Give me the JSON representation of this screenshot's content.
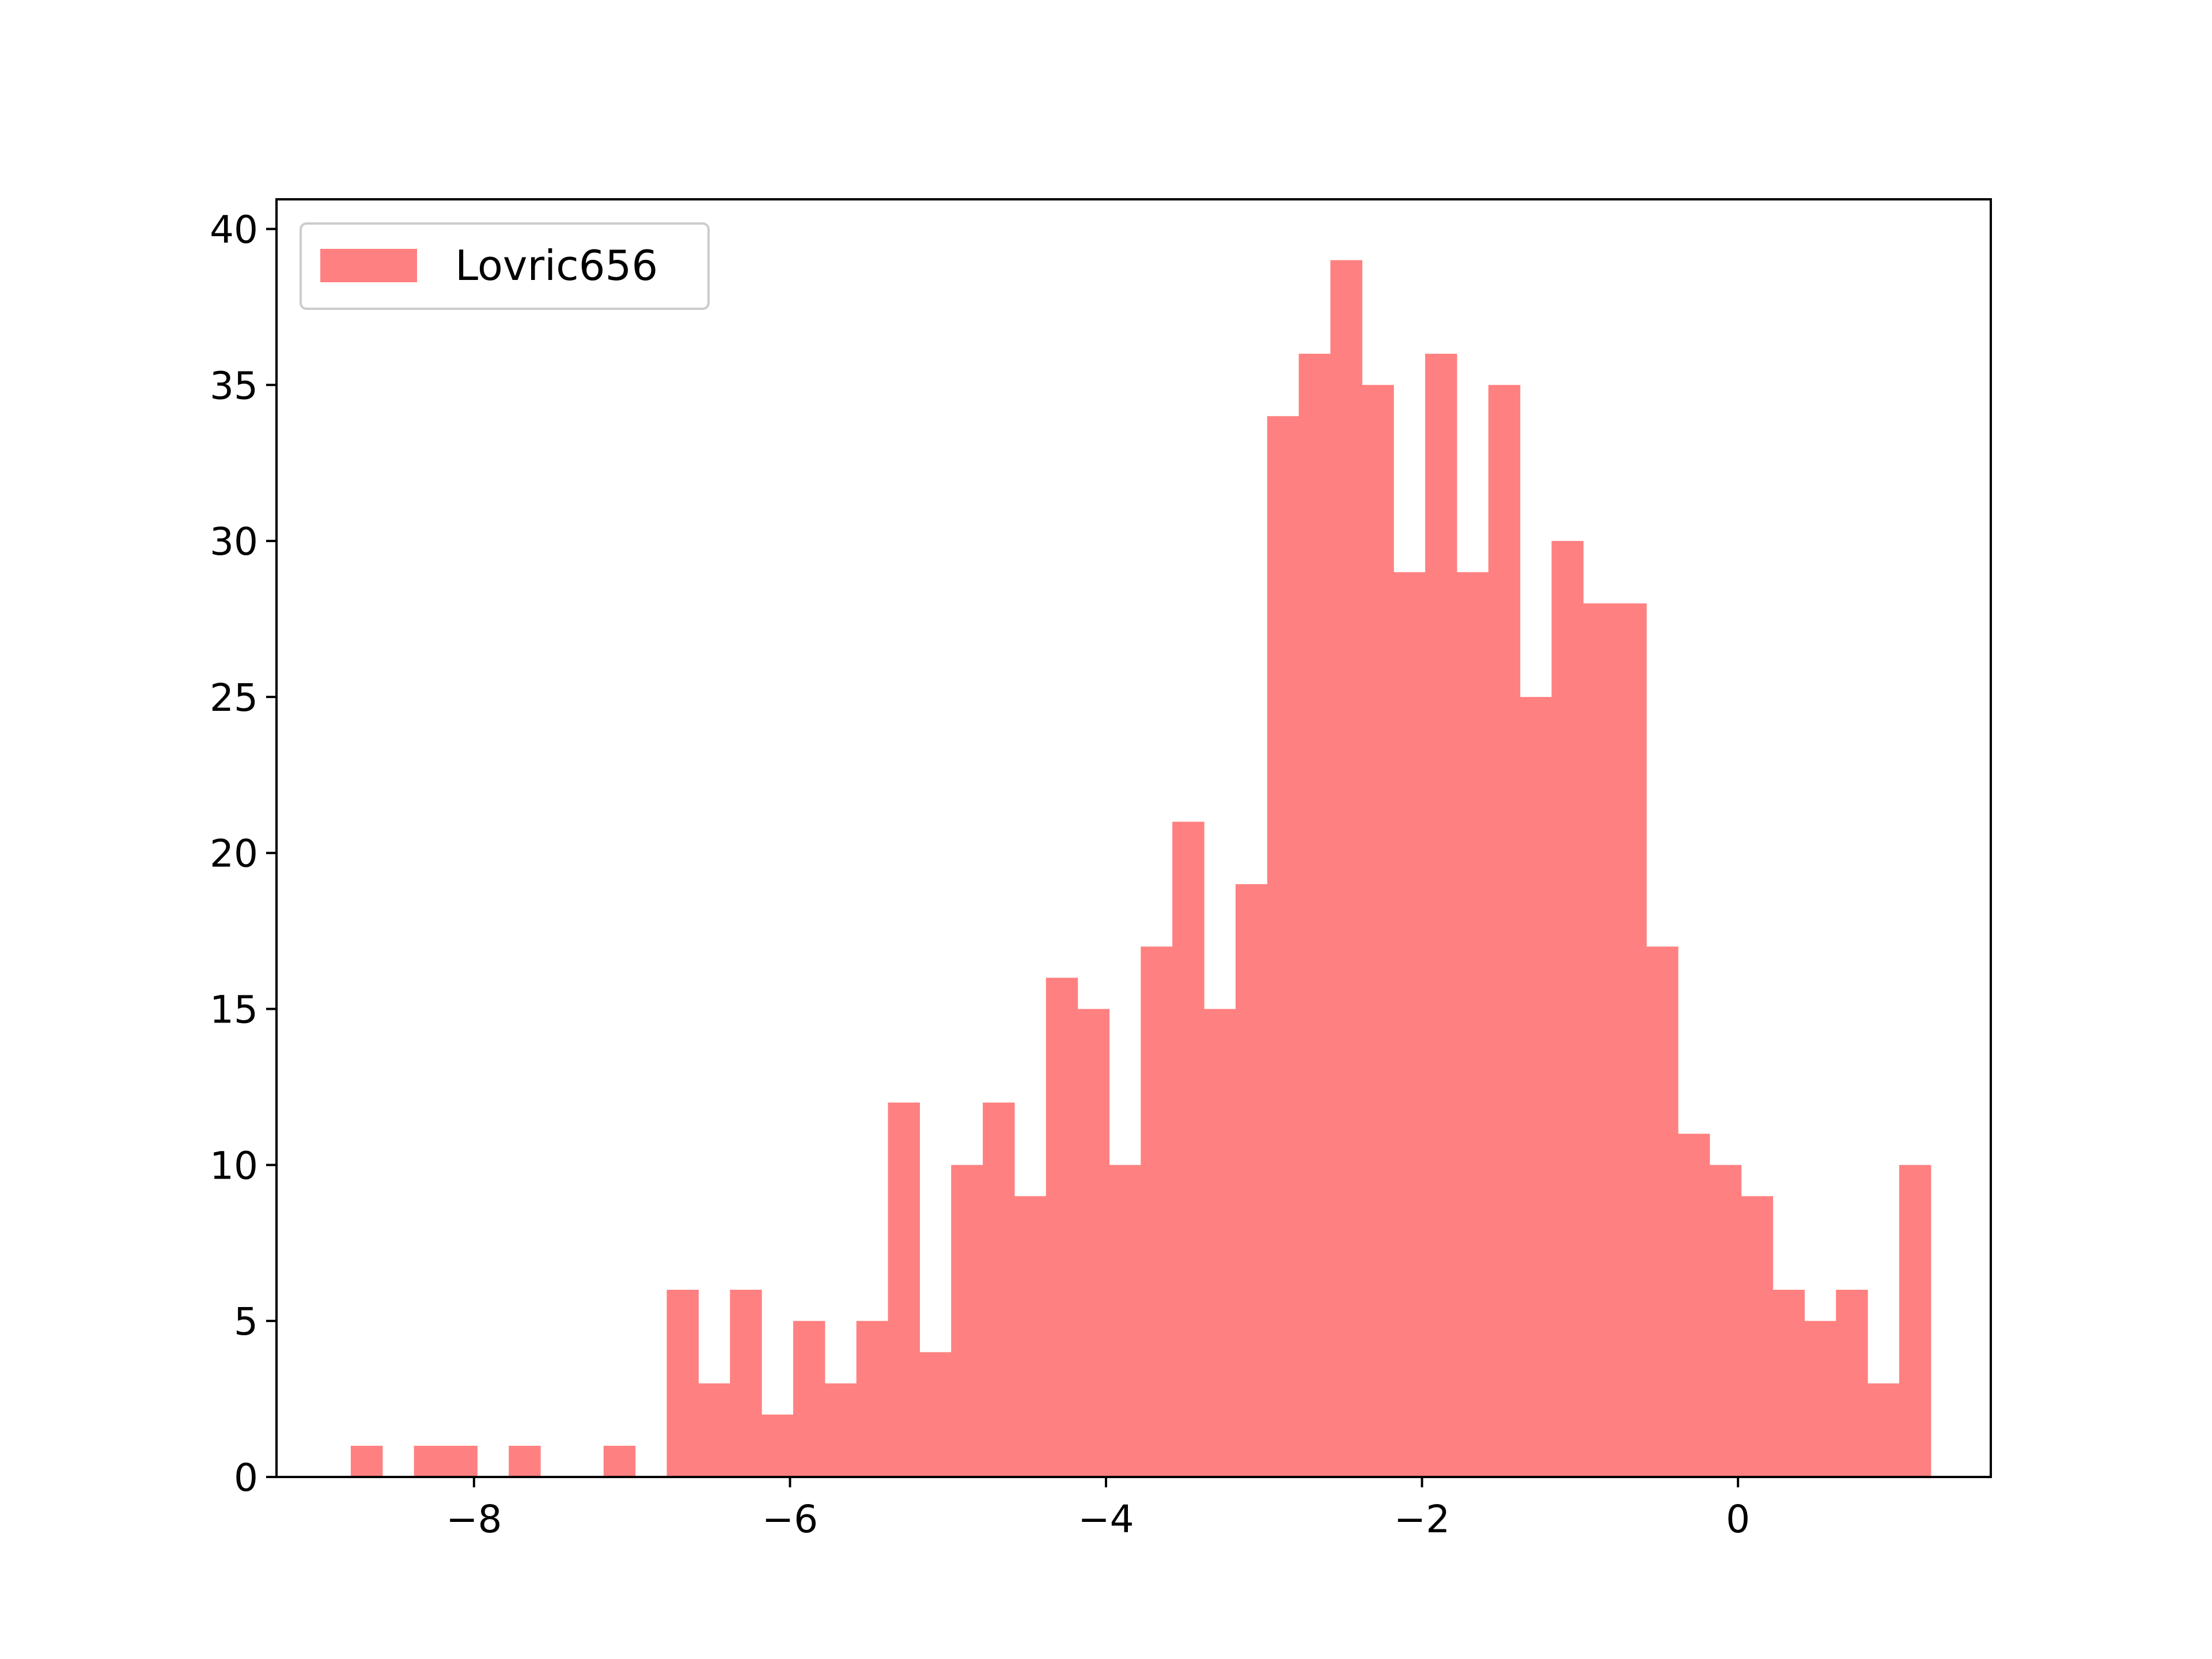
{
  "chart_data": {
    "type": "bar",
    "title": "",
    "xlabel": "",
    "ylabel": "",
    "xlim": [
      -9.25,
      1.6
    ],
    "ylim": [
      0,
      40.95
    ],
    "grid": false,
    "legend": {
      "placement": "top-left",
      "entries": [
        "Lovric656"
      ]
    },
    "series": [
      {
        "name": "Lovric656",
        "color": "#ff8080",
        "bin_edges": [
          -8.78,
          -8.58,
          -8.38,
          -8.18,
          -7.98,
          -7.78,
          -7.58,
          -7.38,
          -7.18,
          -6.98,
          -6.78,
          -6.58,
          -6.38,
          -6.18,
          -5.98,
          -5.78,
          -5.58,
          -5.38,
          -5.18,
          -4.98,
          -4.78,
          -4.58,
          -4.38,
          -4.18,
          -3.98,
          -3.78,
          -3.58,
          -3.38,
          -3.18,
          -2.98,
          -2.78,
          -2.58,
          -2.38,
          -2.18,
          -1.98,
          -1.78,
          -1.58,
          -1.38,
          -1.18,
          -0.98,
          -0.78,
          -0.58,
          -0.38,
          -0.18,
          0.02,
          0.22,
          0.42,
          0.62,
          0.82,
          1.02,
          1.22
        ],
        "counts": [
          1,
          0,
          1,
          1,
          0,
          1,
          0,
          0,
          1,
          0,
          6,
          3,
          6,
          2,
          5,
          3,
          5,
          12,
          4,
          10,
          12,
          9,
          16,
          15,
          10,
          17,
          21,
          15,
          19,
          34,
          36,
          39,
          35,
          29,
          36,
          29,
          35,
          25,
          30,
          28,
          28,
          17,
          11,
          10,
          9,
          6,
          5,
          6,
          3,
          10
        ]
      }
    ],
    "x_ticks": [
      -8,
      -6,
      -4,
      -2,
      0
    ],
    "x_tick_labels": [
      "−8",
      "−6",
      "−4",
      "−2",
      "0"
    ],
    "y_ticks": [
      0,
      5,
      10,
      15,
      20,
      25,
      30,
      35,
      40
    ],
    "y_tick_labels": [
      "0",
      "5",
      "10",
      "15",
      "20",
      "25",
      "30",
      "35",
      "40"
    ]
  }
}
